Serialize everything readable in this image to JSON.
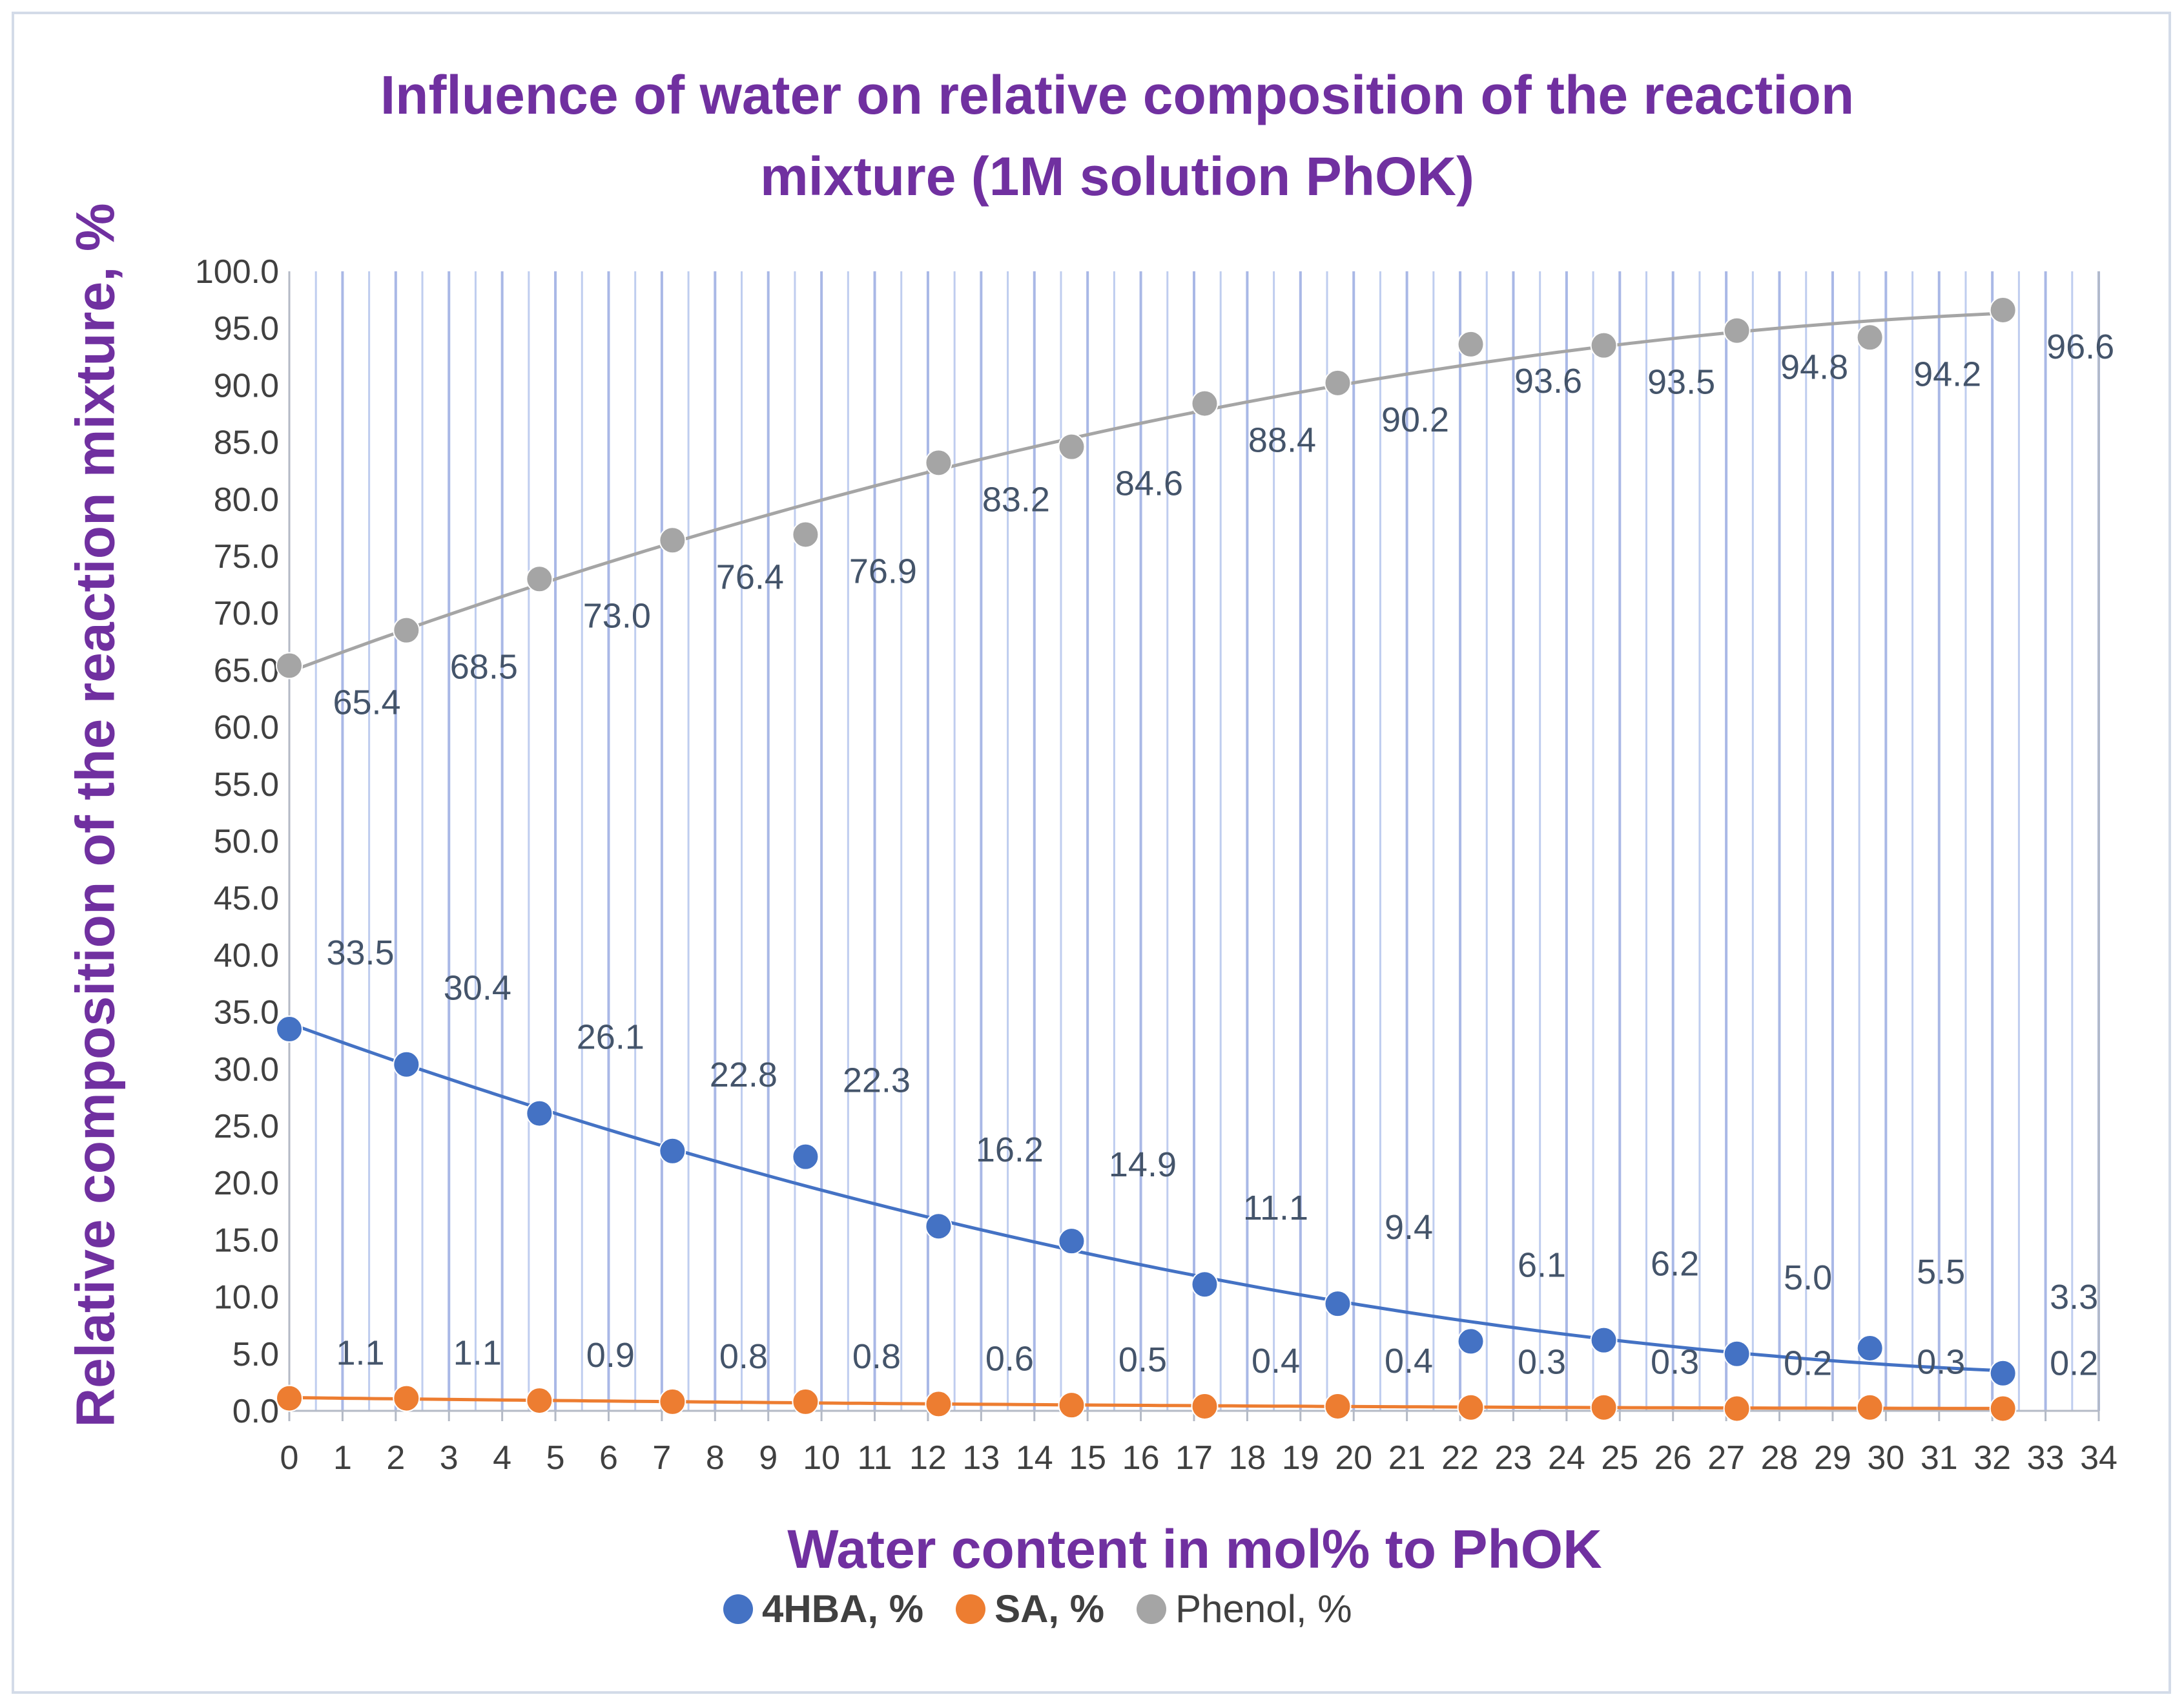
{
  "chart_data": {
    "type": "scatter",
    "title": "Influence of water  on relative composition of the reaction mixture (1M solution PhOK)",
    "title_lines": [
      "Influence of water  on relative composition of the reaction",
      "mixture (1M solution PhOK)"
    ],
    "xlabel": "Water content in mol% to  PhOK",
    "ylabel": "Relative composition of the reaction mixture, %",
    "xlim": [
      0,
      34
    ],
    "ylim": [
      0,
      100
    ],
    "x_ticks": [
      0,
      1,
      2,
      3,
      4,
      5,
      6,
      7,
      8,
      9,
      10,
      11,
      12,
      13,
      14,
      15,
      16,
      17,
      18,
      19,
      20,
      21,
      22,
      23,
      24,
      25,
      26,
      27,
      28,
      29,
      30,
      31,
      32,
      33,
      34
    ],
    "y_ticks": [
      "0.0",
      "5.0",
      "10.0",
      "15.0",
      "20.0",
      "25.0",
      "30.0",
      "35.0",
      "40.0",
      "45.0",
      "50.0",
      "55.0",
      "60.0",
      "65.0",
      "70.0",
      "75.0",
      "80.0",
      "85.0",
      "90.0",
      "95.0",
      "100.0"
    ],
    "grid": "vertical",
    "legend_position": "bottom",
    "trendlines": "polynomial",
    "x": [
      0,
      2.2,
      4.7,
      7.2,
      9.7,
      12.2,
      14.7,
      17.2,
      19.7,
      22.2,
      24.7,
      27.2,
      29.7,
      32.2
    ],
    "series": [
      {
        "name": "4HBA, %",
        "color": "#4472c4",
        "bold": true,
        "values": [
          33.5,
          30.4,
          26.1,
          22.8,
          22.3,
          16.2,
          14.9,
          11.1,
          9.4,
          6.1,
          6.2,
          5.0,
          5.5,
          3.3
        ],
        "labels": [
          "33.5",
          "30.4",
          "26.1",
          "22.8",
          "22.3",
          "16.2",
          "14.9",
          "11.1",
          "9.4",
          "6.1",
          "6.2",
          "5.0",
          "5.5",
          "3.3"
        ]
      },
      {
        "name": "SA, %",
        "color": "#ed7d31",
        "bold": true,
        "values": [
          1.1,
          1.1,
          0.9,
          0.8,
          0.8,
          0.6,
          0.5,
          0.4,
          0.4,
          0.3,
          0.3,
          0.2,
          0.3,
          0.2
        ],
        "labels": [
          "1.1",
          "1.1",
          "0.9",
          "0.8",
          "0.8",
          "0.6",
          "0.5",
          "0.4",
          "0.4",
          "0.3",
          "0.3",
          "0.2",
          "0.3",
          "0.2"
        ]
      },
      {
        "name": "Phenol, %",
        "color": "#a5a5a5",
        "bold": false,
        "values": [
          65.4,
          68.5,
          73.0,
          76.4,
          76.9,
          83.2,
          84.6,
          88.4,
          90.2,
          93.6,
          93.5,
          94.8,
          94.2,
          96.6
        ],
        "labels": [
          "65.4",
          "68.5",
          "73.0",
          "76.4",
          "76.9",
          "83.2",
          "84.6",
          "88.4",
          "90.2",
          "93.6",
          "93.5",
          "94.8",
          "94.2",
          "96.6"
        ]
      }
    ]
  }
}
